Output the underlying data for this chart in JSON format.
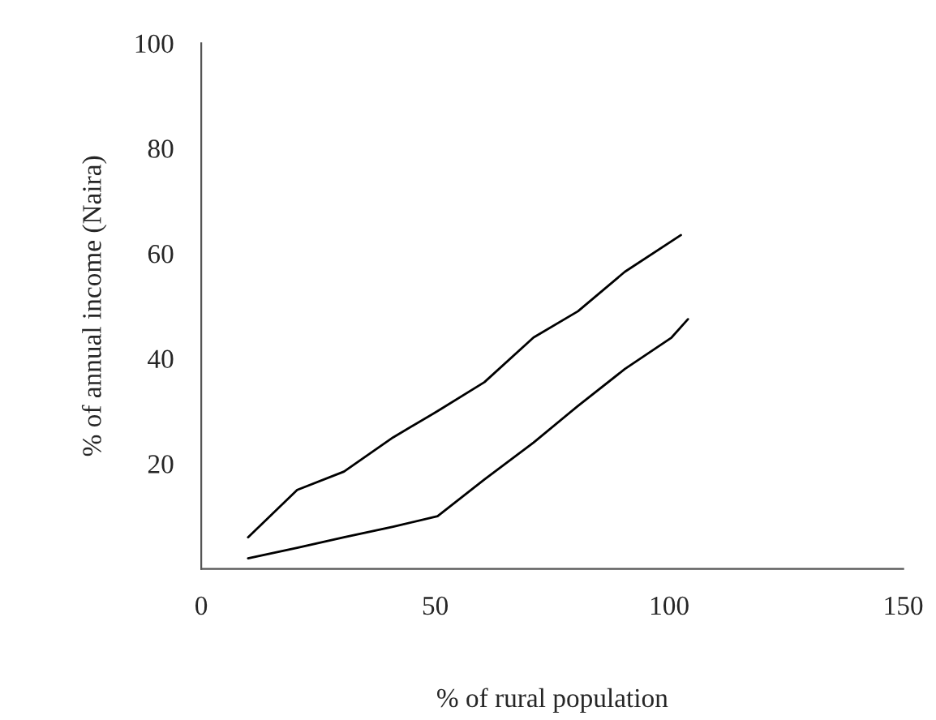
{
  "chart_data": {
    "type": "line",
    "xlabel": "% of rural population",
    "ylabel": "% of annual income (Naira)",
    "xlim": [
      0,
      150
    ],
    "xticks": [
      0,
      50,
      100,
      150
    ],
    "ylim": [
      0,
      100
    ],
    "yticks": [
      20,
      40,
      60,
      80,
      100
    ],
    "grid": false,
    "marker": "none",
    "line_style": "solid",
    "series": [
      {
        "color": "#000000",
        "x": [
          10,
          20.5,
          30.5,
          41,
          50.5,
          60.5,
          71,
          80.5,
          90.5,
          102.5
        ],
        "values": [
          6,
          15,
          18.5,
          25,
          30,
          35.5,
          44,
          49,
          56.5,
          63.5
        ]
      },
      {
        "color": "#000000",
        "x": [
          10,
          20.5,
          30.5,
          41,
          50.5,
          60.5,
          71,
          80.5,
          90.5,
          100.5,
          104
        ],
        "values": [
          2,
          4,
          6,
          8,
          10,
          17,
          24,
          31,
          38,
          44,
          47.5
        ]
      }
    ]
  }
}
